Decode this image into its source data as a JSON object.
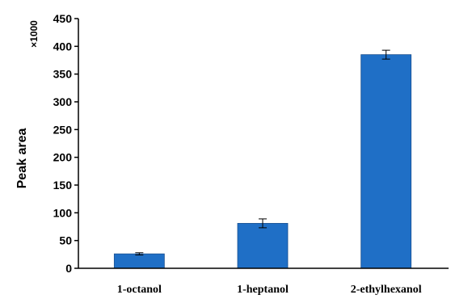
{
  "chart_data": {
    "type": "bar",
    "title": "",
    "xlabel": "",
    "ylabel": "Peak area",
    "ylabel_multiplier": "×1000",
    "categories": [
      "1-octanol",
      "1-heptanol",
      "2-ethylhexanol"
    ],
    "values": [
      26,
      81,
      385
    ],
    "errors": [
      2,
      8,
      8
    ],
    "ylim": [
      0,
      450
    ],
    "yticks": [
      "0",
      "50",
      "100",
      "150",
      "200",
      "250",
      "300",
      "350",
      "400",
      "450"
    ],
    "bar_color": "#1f6fc6",
    "grid": false,
    "legend": "none"
  }
}
